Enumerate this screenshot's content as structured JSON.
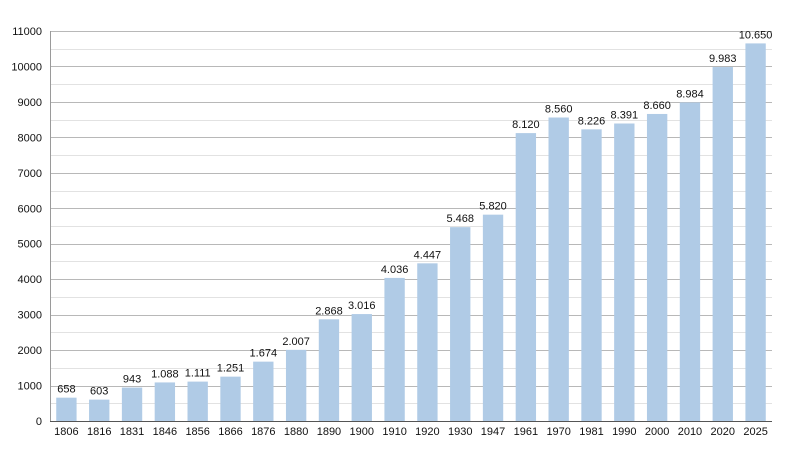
{
  "chart_data": {
    "type": "bar",
    "categories": [
      "1806",
      "1816",
      "1831",
      "1846",
      "1856",
      "1866",
      "1876",
      "1880",
      "1890",
      "1900",
      "1910",
      "1920",
      "1930",
      "1947",
      "1961",
      "1970",
      "1981",
      "1990",
      "2000",
      "2010",
      "2020",
      "2025"
    ],
    "values": [
      658,
      603,
      943,
      1088,
      1111,
      1251,
      1674,
      2007,
      2868,
      3016,
      4036,
      4447,
      5468,
      5820,
      8120,
      8560,
      8226,
      8391,
      8660,
      8984,
      9983,
      10650
    ],
    "value_labels": [
      "658",
      "603",
      "943",
      "1.088",
      "1.111",
      "1.251",
      "1.674",
      "2.007",
      "2.868",
      "3.016",
      "4.036",
      "4.447",
      "5.468",
      "5.820",
      "8.120",
      "8.560",
      "8.226",
      "8.391",
      "8.660",
      "8.984",
      "9.983",
      "10.650"
    ],
    "title": "",
    "xlabel": "",
    "ylabel": "",
    "ylim": [
      0,
      11000
    ],
    "yticks": [
      0,
      1000,
      2000,
      3000,
      4000,
      5000,
      6000,
      7000,
      8000,
      9000,
      10000,
      11000
    ],
    "grid": true,
    "minor_grid": true,
    "legend": "none",
    "bar_color": "#b0cbe6",
    "grid_color": "#b8b8b8",
    "minor_grid_color": "#e2e2e2"
  }
}
